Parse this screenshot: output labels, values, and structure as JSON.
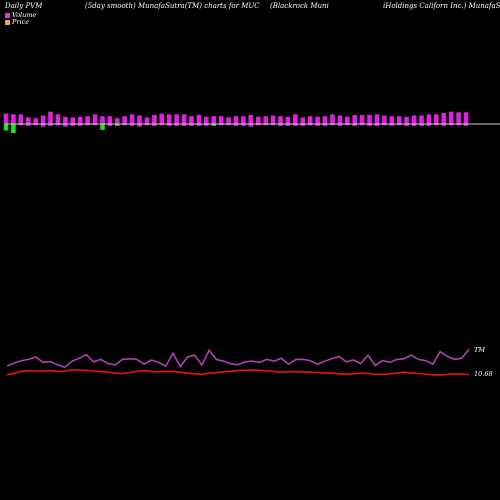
{
  "header": {
    "title_left": "Daily PVM",
    "title_mid1": "(5day smooth) MunafaSutra(TM) charts for MUC",
    "title_mid2": "(Blackrock Muni",
    "title_right": "iHoldings Californ Inc.) MunafaSutra.com"
  },
  "legend": [
    {
      "label": "Volume",
      "color": "#cc44cc"
    },
    {
      "label": "Price",
      "color": "#e8a080"
    }
  ],
  "colors": {
    "up": "#e020e0",
    "down": "#22dd22",
    "baseline": "#cccccc",
    "pvm_line": "#b040b0",
    "price_line": "#ee1111"
  },
  "chart_data": {
    "type": "bar",
    "title": "Daily PVM",
    "series": [
      {
        "name": "Volume",
        "values": [
          1.6,
          1.5,
          1.5,
          1.0,
          0.9,
          1.3,
          1.9,
          1.5,
          1.1,
          1.0,
          1.1,
          1.2,
          1.5,
          1.2,
          1.2,
          0.9,
          1.2,
          1.5,
          1.3,
          1.0,
          1.4,
          1.6,
          1.5,
          1.5,
          1.5,
          1.2,
          1.4,
          1.1,
          1.2,
          1.2,
          1.0,
          1.2,
          1.2,
          1.4,
          1.1,
          1.2,
          1.3,
          1.2,
          1.1,
          1.5,
          1.0,
          1.2,
          1.1,
          1.2,
          1.5,
          1.3,
          1.1,
          1.4,
          1.4,
          1.4,
          1.5,
          1.3,
          1.2,
          1.2,
          1.1,
          1.3,
          1.3,
          1.5,
          1.5,
          1.7,
          1.9,
          1.8,
          1.8
        ],
        "down_values": [
          1.0,
          1.4,
          0.2,
          0.3,
          0.2,
          0.4,
          0.3,
          0.2,
          0.4,
          0.3,
          0.3,
          0.2,
          0.2,
          0.9,
          0.3,
          0.3,
          0.2,
          0.3,
          0.4,
          0.2,
          0.3,
          0.2,
          0.3,
          0.3,
          0.3,
          0.3,
          0.3,
          0.3,
          0.3,
          0.2,
          0.2,
          0.3,
          0.3,
          0.4,
          0.2,
          0.2,
          0.2,
          0.3,
          0.3,
          0.3,
          0.3,
          0.2,
          0.3,
          0.3,
          0.2,
          0.3,
          0.2,
          0.3,
          0.2,
          0.3,
          0.3,
          0.2,
          0.3,
          0.2,
          0.3,
          0.3,
          0.3,
          0.3,
          0.2,
          0.3,
          0.2,
          0.2,
          0.3
        ],
        "down_green": [
          true,
          true,
          false,
          false,
          false,
          false,
          false,
          false,
          false,
          false,
          false,
          false,
          false,
          true,
          false,
          true,
          false,
          false,
          false,
          false,
          false,
          false,
          false,
          false,
          false,
          false,
          false,
          false,
          true,
          false,
          false,
          false,
          false,
          false,
          false,
          false,
          false,
          false,
          false,
          false,
          false,
          false,
          false,
          false,
          false,
          false,
          false,
          false,
          false,
          false,
          false,
          false,
          false,
          false,
          false,
          false,
          false,
          false,
          false,
          false,
          false,
          false,
          false
        ]
      },
      {
        "name": "PVM",
        "label": "TM",
        "values": [
          0.4,
          0.5,
          0.58,
          0.62,
          0.7,
          0.52,
          0.55,
          0.44,
          0.36,
          0.56,
          0.66,
          0.78,
          0.54,
          0.62,
          0.48,
          0.44,
          0.62,
          0.64,
          0.62,
          0.46,
          0.6,
          0.52,
          0.4,
          0.82,
          0.38,
          0.7,
          0.76,
          0.44,
          0.92,
          0.62,
          0.56,
          0.48,
          0.44,
          0.54,
          0.56,
          0.52,
          0.62,
          0.56,
          0.66,
          0.46,
          0.62,
          0.62,
          0.58,
          0.46,
          0.56,
          0.64,
          0.72,
          0.54,
          0.6,
          0.48,
          0.76,
          0.42,
          0.58,
          0.52,
          0.62,
          0.64,
          0.76,
          0.62,
          0.58,
          0.46,
          0.88,
          0.72,
          0.62,
          0.66,
          0.96
        ]
      },
      {
        "name": "Price",
        "label": "10.68",
        "values": [
          0.2,
          0.3,
          0.42,
          0.46,
          0.44,
          0.42,
          0.46,
          0.4,
          0.44,
          0.5,
          0.5,
          0.48,
          0.44,
          0.4,
          0.36,
          0.3,
          0.28,
          0.34,
          0.42,
          0.46,
          0.4,
          0.38,
          0.42,
          0.4,
          0.36,
          0.3,
          0.26,
          0.24,
          0.3,
          0.34,
          0.38,
          0.42,
          0.46,
          0.48,
          0.5,
          0.48,
          0.44,
          0.4,
          0.36,
          0.38,
          0.4,
          0.38,
          0.36,
          0.34,
          0.3,
          0.3,
          0.26,
          0.24,
          0.26,
          0.3,
          0.28,
          0.24,
          0.22,
          0.26,
          0.3,
          0.36,
          0.32,
          0.28,
          0.24,
          0.2,
          0.18,
          0.22,
          0.26,
          0.24,
          0.22
        ]
      }
    ]
  }
}
